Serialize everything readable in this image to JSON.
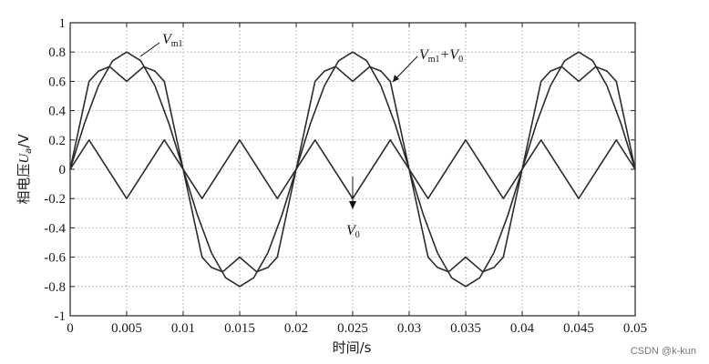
{
  "chart_data": {
    "type": "line",
    "xlabel": "时间/s",
    "ylabel_main": "相电压",
    "ylabel_var": "U",
    "ylabel_sub": "a",
    "ylabel_unit": "/V",
    "xlim": [
      0,
      0.05
    ],
    "ylim": [
      -1,
      1
    ],
    "xticks": [
      0,
      0.005,
      0.01,
      0.015,
      0.02,
      0.025,
      0.03,
      0.035,
      0.04,
      0.045,
      0.05
    ],
    "yticks": [
      -1,
      -0.8,
      -0.6,
      -0.4,
      -0.2,
      0,
      0.2,
      0.4,
      0.6,
      0.8,
      1
    ],
    "xtick_labels": [
      "0",
      "0.005",
      "0.01",
      "0.015",
      "0.02",
      "0.025",
      "0.03",
      "0.035",
      "0.04",
      "0.045",
      "0.05"
    ],
    "ytick_labels": [
      "-1",
      "-0.8",
      "-0.6",
      "-0.4",
      "-0.2",
      "0",
      "0.2",
      "0.4",
      "0.6",
      "0.8",
      "1"
    ],
    "grid": true,
    "series": [
      {
        "name": "Vm1",
        "x": [
          0,
          0.00125,
          0.0025,
          0.00375,
          0.005,
          0.00625,
          0.0075,
          0.00875,
          0.01,
          0.01125,
          0.0125,
          0.01375,
          0.015,
          0.01625,
          0.0175,
          0.01875,
          0.02,
          0.02125,
          0.0225,
          0.02375,
          0.025,
          0.02625,
          0.0275,
          0.02875,
          0.03,
          0.03125,
          0.0325,
          0.03375,
          0.035,
          0.03625,
          0.0375,
          0.03875,
          0.04,
          0.04125,
          0.0425,
          0.04375,
          0.045,
          0.04625,
          0.0475,
          0.04875,
          0.05
        ],
        "y": [
          0,
          0.31,
          0.57,
          0.74,
          0.8,
          0.74,
          0.57,
          0.31,
          0,
          -0.31,
          -0.57,
          -0.74,
          -0.8,
          -0.74,
          -0.57,
          -0.31,
          0,
          0.31,
          0.57,
          0.74,
          0.8,
          0.74,
          0.57,
          0.31,
          0,
          -0.31,
          -0.57,
          -0.74,
          -0.8,
          -0.74,
          -0.57,
          -0.31,
          0,
          0.31,
          0.57,
          0.74,
          0.8,
          0.74,
          0.57,
          0.31,
          0
        ]
      },
      {
        "name": "V0",
        "x": [
          0,
          0.00167,
          0.005,
          0.00833,
          0.01167,
          0.015,
          0.01833,
          0.02167,
          0.025,
          0.02833,
          0.03167,
          0.035,
          0.03833,
          0.04167,
          0.045,
          0.04833,
          0.05
        ],
        "y": [
          0,
          0.2,
          -0.2,
          0.2,
          -0.2,
          0.2,
          -0.2,
          0.2,
          -0.2,
          0.2,
          -0.2,
          0.2,
          -0.2,
          0.2,
          -0.2,
          0.2,
          0
        ]
      },
      {
        "name": "Vm1+V0",
        "x": [
          0,
          0.00167,
          0.0025,
          0.0035,
          0.005,
          0.0065,
          0.0075,
          0.00833,
          0.01,
          0.01167,
          0.0125,
          0.0135,
          0.015,
          0.0165,
          0.0175,
          0.01833,
          0.02,
          0.02167,
          0.0225,
          0.0235,
          0.025,
          0.0265,
          0.0275,
          0.02833,
          0.03,
          0.03167,
          0.0325,
          0.0335,
          0.035,
          0.0365,
          0.0375,
          0.03833,
          0.04,
          0.04167,
          0.0425,
          0.0435,
          0.045,
          0.0465,
          0.0475,
          0.04833,
          0.05
        ],
        "y": [
          0,
          0.6,
          0.67,
          0.7,
          0.6,
          0.7,
          0.67,
          0.6,
          0,
          -0.6,
          -0.67,
          -0.7,
          -0.6,
          -0.7,
          -0.67,
          -0.6,
          0,
          0.6,
          0.67,
          0.7,
          0.6,
          0.7,
          0.67,
          0.6,
          0,
          -0.6,
          -0.67,
          -0.7,
          -0.6,
          -0.7,
          -0.67,
          -0.6,
          0,
          0.6,
          0.67,
          0.7,
          0.6,
          0.7,
          0.67,
          0.6,
          0
        ]
      }
    ],
    "annotations": [
      {
        "var": "V",
        "sub": "m1",
        "suffix": "",
        "sub2": ""
      },
      {
        "var": "V",
        "sub": "m1",
        "suffix": "+V",
        "sub2": "0"
      },
      {
        "var": "V",
        "sub": "0",
        "suffix": "",
        "sub2": ""
      }
    ]
  },
  "watermark": "CSDN @k-kun"
}
